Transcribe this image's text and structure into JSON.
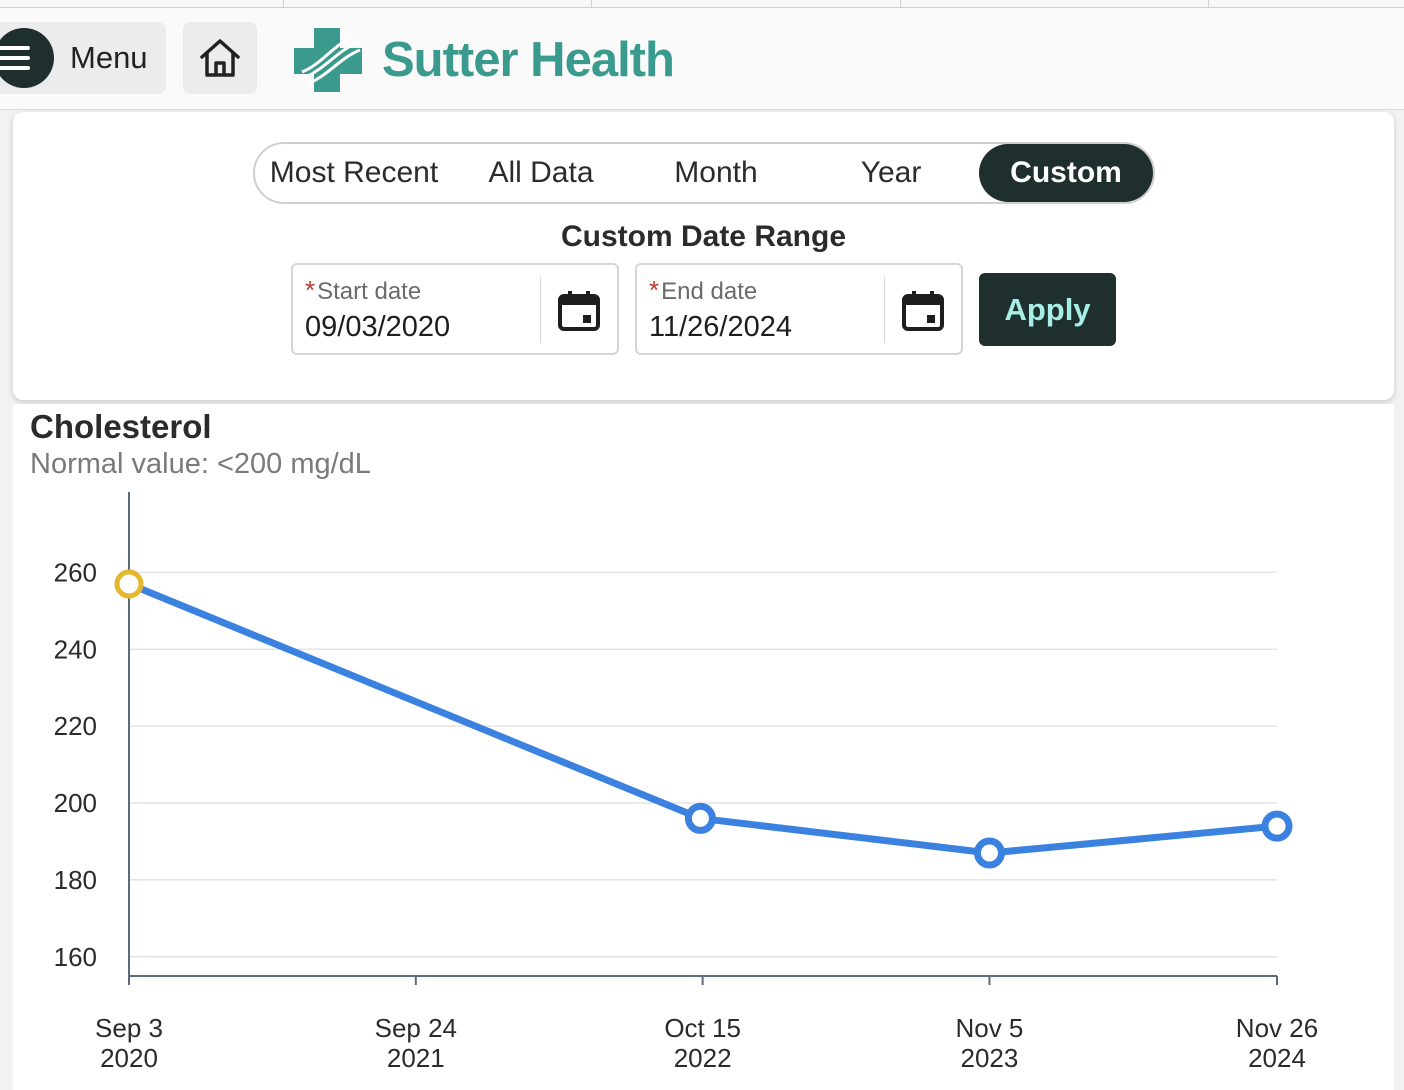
{
  "header": {
    "menu_label": "Menu",
    "brand_name": "Sutter Health",
    "brand_color": "#3a9a8e",
    "menu_icon": "hamburger-icon",
    "home_icon": "home-icon"
  },
  "range_selector": {
    "tabs": [
      {
        "label": "Most Recent",
        "active": false
      },
      {
        "label": "All Data",
        "active": false
      },
      {
        "label": "Month",
        "active": false
      },
      {
        "label": "Year",
        "active": false
      },
      {
        "label": "Custom",
        "active": true
      }
    ],
    "custom_title": "Custom Date Range",
    "required_mark": "*",
    "start_date": {
      "label": "Start date",
      "value": "09/03/2020"
    },
    "end_date": {
      "label": "End date",
      "value": "11/26/2024"
    },
    "apply_label": "Apply",
    "calendar_icon": "calendar-icon"
  },
  "chart_data": {
    "type": "line",
    "title": "Cholesterol",
    "subtitle": "Normal value: <200 mg/dL",
    "ylim": [
      155,
      270
    ],
    "y_ticks": [
      160,
      180,
      200,
      220,
      240,
      260
    ],
    "x_ticks": [
      {
        "date": "2020-09-03",
        "label_line1": "Sep 3",
        "label_line2": "2020"
      },
      {
        "date": "2021-09-24",
        "label_line1": "Sep 24",
        "label_line2": "2021"
      },
      {
        "date": "2022-10-15",
        "label_line1": "Oct 15",
        "label_line2": "2022"
      },
      {
        "date": "2023-11-05",
        "label_line1": "Nov 5",
        "label_line2": "2023"
      },
      {
        "date": "2024-11-26",
        "label_line1": "Nov 26",
        "label_line2": "2024"
      }
    ],
    "xlim": [
      "2020-09-03",
      "2024-11-26"
    ],
    "grid": true,
    "series": [
      {
        "color": "#3b82e0",
        "points": [
          {
            "x": "2020-09-03",
            "y": 257,
            "highlighted": true
          },
          {
            "x": "2022-10-12",
            "y": 196,
            "highlighted": false
          },
          {
            "x": "2023-11-05",
            "y": 187,
            "highlighted": false
          },
          {
            "x": "2024-11-26",
            "y": 194,
            "highlighted": false
          }
        ]
      }
    ],
    "highlight_color": "#e3b82c"
  }
}
